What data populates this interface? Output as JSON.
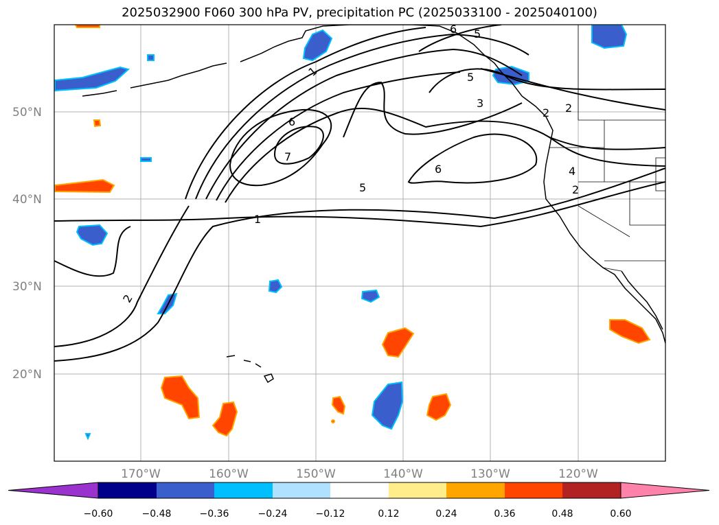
{
  "title": "2025032900 F060 300 hPa PV, precipitation PC (2025033100 - 2025040100)",
  "map": {
    "lat_ticks": [
      "50°N",
      "40°N",
      "30°N",
      "20°N"
    ],
    "lon_ticks": [
      "170°W",
      "160°W",
      "150°W",
      "140°W",
      "130°W",
      "120°W"
    ],
    "pv_contour_labels": [
      "1",
      "2",
      "3",
      "4",
      "5",
      "6",
      "6",
      "6",
      "7",
      "1",
      "2",
      "5",
      "5",
      "2",
      "2"
    ]
  },
  "colorbar": {
    "ticks": [
      "−0.60",
      "−0.48",
      "−0.36",
      "−0.24",
      "−0.12",
      "0.12",
      "0.24",
      "0.36",
      "0.48",
      "0.60"
    ],
    "colors": [
      "#9a32cd",
      "#00008b",
      "#3a5fcd",
      "#00bfff",
      "#b0e2ff",
      "#ffffff",
      "#ffec8b",
      "#ffa500",
      "#ff4500",
      "#b22222",
      "#ff82ab"
    ]
  }
}
